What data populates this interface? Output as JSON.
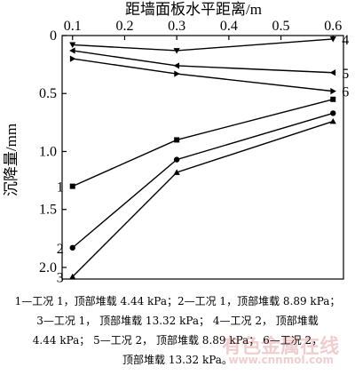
{
  "chart_data": {
    "type": "line",
    "xlabel": "距墙面板水平距离/m",
    "ylabel": "沉降量/mm",
    "x_axis_position": "top",
    "y_axis_inverted": true,
    "xlim": [
      0.08,
      0.62
    ],
    "ylim": [
      0,
      2.1
    ],
    "xticks": [
      "0.1",
      "0.2",
      "0.3",
      "0.4",
      "0.5",
      "0.6"
    ],
    "yticks": [
      "0",
      "0.5",
      "1.0",
      "1.5",
      "2.0"
    ],
    "series": [
      {
        "name": "1",
        "marker": "square",
        "label_side": "left",
        "x": [
          0.1,
          0.3,
          0.6
        ],
        "y": [
          1.3,
          0.9,
          0.55
        ]
      },
      {
        "name": "2",
        "marker": "circle",
        "label_side": "left",
        "x": [
          0.1,
          0.3,
          0.6
        ],
        "y": [
          1.83,
          1.07,
          0.67
        ]
      },
      {
        "name": "3",
        "marker": "triangle",
        "label_side": "left",
        "x": [
          0.1,
          0.3,
          0.6
        ],
        "y": [
          2.08,
          1.18,
          0.74
        ]
      },
      {
        "name": "4",
        "marker": "triangle-down",
        "label_side": "right",
        "x": [
          0.1,
          0.3,
          0.6
        ],
        "y": [
          0.08,
          0.13,
          0.03
        ]
      },
      {
        "name": "5",
        "marker": "triangle-left",
        "label_side": "right",
        "x": [
          0.1,
          0.3,
          0.6
        ],
        "y": [
          0.13,
          0.26,
          0.32
        ]
      },
      {
        "name": "6",
        "marker": "triangle-right",
        "label_side": "right",
        "x": [
          0.1,
          0.3,
          0.6
        ],
        "y": [
          0.2,
          0.33,
          0.48
        ]
      }
    ],
    "grid": false
  },
  "caption": {
    "line1": "1—工况 1，顶部堆载 4.44 kPa；2—工况 1，顶部堆载 8.89 kPa；",
    "line2": "3—工况 1， 顶部堆载 13.32 kPa； 4—工况 2， 顶部堆载",
    "line3": "4.44 kPa； 5—工况 2， 顶部堆载 8.89 kPa； 6—工况 2，",
    "line4": "顶部堆载 13.32 kPa。"
  },
  "watermark": {
    "text": "有色金属在线",
    "url": "www.cnnmol.com"
  }
}
